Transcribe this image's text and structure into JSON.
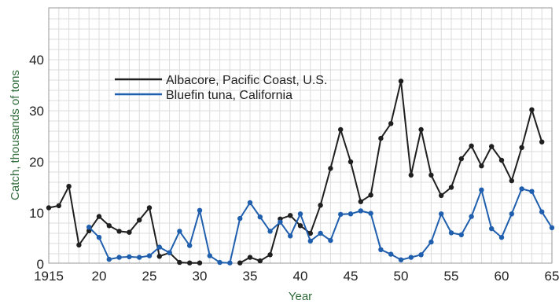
{
  "chart_data": {
    "type": "line",
    "xlabel": "Year",
    "ylabel": "Catch, thousands of tons",
    "xlim": [
      1915,
      1965
    ],
    "ylim": [
      0,
      50
    ],
    "grid": true,
    "legend_placement": "top-left",
    "x_ticks": [
      {
        "value": 1915,
        "label": "1915"
      },
      {
        "value": 1920,
        "label": "20"
      },
      {
        "value": 1925,
        "label": "25"
      },
      {
        "value": 1930,
        "label": "30"
      },
      {
        "value": 1935,
        "label": "35"
      },
      {
        "value": 1940,
        "label": "40"
      },
      {
        "value": 1945,
        "label": "45"
      },
      {
        "value": 1950,
        "label": "50"
      },
      {
        "value": 1955,
        "label": "55"
      },
      {
        "value": 1960,
        "label": "60"
      },
      {
        "value": 1965,
        "label": "65"
      }
    ],
    "y_ticks": [
      {
        "value": 0,
        "label": "0"
      },
      {
        "value": 10,
        "label": "10"
      },
      {
        "value": 20,
        "label": "20"
      },
      {
        "value": 30,
        "label": "30"
      },
      {
        "value": 40,
        "label": "40"
      }
    ],
    "series": [
      {
        "name": "Albacore, Pacific Coast, U.S.",
        "color": "#1f1f1f",
        "segments": [
          [
            [
              1915,
              11
            ],
            [
              1916,
              11.4
            ],
            [
              1917,
              15.2
            ],
            [
              1918,
              3.7
            ],
            [
              1919,
              6.5
            ],
            [
              1920,
              9.3
            ],
            [
              1921,
              7.5
            ],
            [
              1922,
              6.4
            ],
            [
              1923,
              6.2
            ],
            [
              1924,
              8.6
            ],
            [
              1925,
              11
            ],
            [
              1926,
              1.5
            ],
            [
              1927,
              2.2
            ],
            [
              1928,
              0.3
            ],
            [
              1929,
              0.2
            ],
            [
              1930,
              0.2
            ]
          ],
          [
            [
              1934,
              0.2
            ],
            [
              1935,
              1.3
            ],
            [
              1936,
              0.6
            ],
            [
              1937,
              1.8
            ],
            [
              1938,
              8.8
            ],
            [
              1939,
              9.5
            ],
            [
              1940,
              7.5
            ],
            [
              1941,
              6
            ],
            [
              1942,
              11.5
            ],
            [
              1943,
              18.7
            ],
            [
              1944,
              26.3
            ],
            [
              1945,
              20
            ],
            [
              1946,
              12.2
            ],
            [
              1947,
              13.5
            ],
            [
              1948,
              24.6
            ],
            [
              1949,
              27.5
            ],
            [
              1950,
              35.8
            ],
            [
              1951,
              17.4
            ],
            [
              1952,
              26.3
            ],
            [
              1953,
              17.4
            ],
            [
              1954,
              13.4
            ],
            [
              1955,
              15
            ],
            [
              1956,
              20.6
            ],
            [
              1957,
              23.1
            ],
            [
              1958,
              19.2
            ],
            [
              1959,
              23
            ],
            [
              1960,
              20.3
            ],
            [
              1961,
              16.3
            ],
            [
              1962,
              22.8
            ],
            [
              1963,
              30.2
            ],
            [
              1964,
              23.9
            ]
          ]
        ]
      },
      {
        "name": "Bluefin tuna, California",
        "color": "#1f5fae",
        "segments": [
          [
            [
              1919,
              7.2
            ],
            [
              1920,
              5.2
            ],
            [
              1921,
              0.9
            ],
            [
              1922,
              1.3
            ],
            [
              1923,
              1.4
            ],
            [
              1924,
              1.3
            ],
            [
              1925,
              1.6
            ],
            [
              1926,
              3.3
            ],
            [
              1927,
              2.2
            ],
            [
              1928,
              6.4
            ],
            [
              1929,
              3.6
            ],
            [
              1930,
              10.5
            ],
            [
              1931,
              1.6
            ],
            [
              1932,
              0.3
            ],
            [
              1933,
              0.2
            ],
            [
              1934,
              8.9
            ],
            [
              1935,
              12
            ],
            [
              1936,
              9.2
            ],
            [
              1937,
              6.4
            ],
            [
              1938,
              8.2
            ],
            [
              1939,
              5.5
            ],
            [
              1940,
              9.8
            ],
            [
              1941,
              4.5
            ],
            [
              1942,
              6
            ],
            [
              1943,
              4.6
            ],
            [
              1944,
              9.7
            ],
            [
              1945,
              9.8
            ],
            [
              1946,
              10.4
            ],
            [
              1947,
              9.9
            ],
            [
              1948,
              2.8
            ],
            [
              1949,
              1.9
            ],
            [
              1950,
              0.8
            ],
            [
              1951,
              1.3
            ],
            [
              1952,
              1.8
            ],
            [
              1953,
              4.3
            ],
            [
              1954,
              9.8
            ],
            [
              1955,
              6.1
            ],
            [
              1956,
              5.7
            ],
            [
              1957,
              9.3
            ],
            [
              1958,
              14.5
            ],
            [
              1959,
              6.9
            ],
            [
              1960,
              5.2
            ],
            [
              1961,
              9.8
            ],
            [
              1962,
              14.7
            ],
            [
              1963,
              14.2
            ],
            [
              1964,
              10.2
            ],
            [
              1965,
              7.1
            ]
          ]
        ]
      }
    ]
  }
}
